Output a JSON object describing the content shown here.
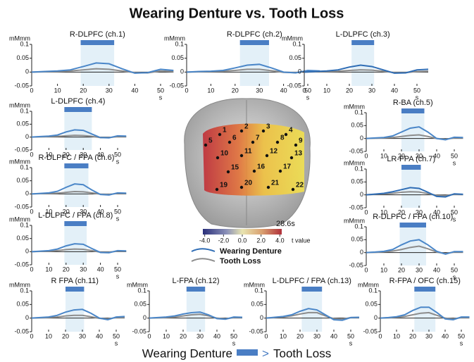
{
  "title": "Wearing  Denture vs. Tooth Loss",
  "chart_data": [
    {
      "type": "line",
      "title": "R-DLPFC (ch.1)",
      "y_label": "mMmm",
      "x_label": "s",
      "x": [
        0,
        5,
        10,
        15,
        20,
        25,
        30,
        35,
        40,
        45,
        50,
        55
      ],
      "xlim": [
        0,
        55
      ],
      "ylim": [
        -0.05,
        0.1
      ],
      "xticks": [
        0,
        10,
        20,
        30,
        40,
        50
      ],
      "yticks": [
        -0.05,
        0,
        0.05,
        0.1
      ],
      "significant": [
        19,
        32
      ],
      "series": [
        {
          "color": "#4a86c8",
          "values": [
            0,
            0.002,
            0.004,
            0.008,
            0.02,
            0.033,
            0.03,
            0.012,
            -0.004,
            -0.002,
            0.01,
            0.006
          ]
        },
        {
          "color": "#8c8c8c",
          "values": [
            0,
            0.001,
            0.002,
            0.004,
            0.008,
            0.012,
            0.01,
            0.004,
            -0.002,
            -0.003,
            0.004,
            0.002
          ]
        }
      ]
    },
    {
      "type": "line",
      "title": "R-DLPFC (ch.2)",
      "y_label": "mMmm",
      "x_label": "s",
      "x": [
        0,
        5,
        10,
        15,
        20,
        25,
        30,
        35,
        40,
        45,
        50,
        55
      ],
      "xlim": [
        0,
        55
      ],
      "ylim": [
        -0.05,
        0.1
      ],
      "xticks": [
        0,
        10,
        20,
        30,
        40,
        50
      ],
      "yticks": [
        -0.05,
        0,
        0.05,
        0.1
      ],
      "significant": [
        22,
        34
      ],
      "series": [
        {
          "color": "#4a86c8",
          "values": [
            0,
            0.002,
            0.003,
            0.006,
            0.015,
            0.025,
            0.028,
            0.015,
            0,
            -0.003,
            0.006,
            0.004
          ]
        },
        {
          "color": "#8c8c8c",
          "values": [
            0,
            0.001,
            0.002,
            0.003,
            0.006,
            0.01,
            0.01,
            0.005,
            -0.001,
            -0.002,
            0.003,
            0.002
          ]
        }
      ]
    },
    {
      "type": "line",
      "title": "L-DLPFC (ch.3)",
      "y_label": "mMmm",
      "x_label": "s",
      "x": [
        0,
        5,
        10,
        15,
        20,
        25,
        30,
        35,
        40,
        45,
        50,
        55
      ],
      "xlim": [
        0,
        55
      ],
      "ylim": [
        -0.05,
        0.1
      ],
      "xticks": [
        0,
        10,
        20,
        30,
        40,
        50
      ],
      "yticks": [
        -0.05,
        0,
        0.05,
        0.1
      ],
      "significant": [
        21,
        31
      ],
      "series": [
        {
          "color": "#2f6db5",
          "values": [
            0,
            0.002,
            0.004,
            0.008,
            0.018,
            0.025,
            0.02,
            0.008,
            -0.004,
            -0.003,
            0.008,
            0.01
          ]
        },
        {
          "color": "#8c8c8c",
          "values": [
            0,
            0.001,
            0.002,
            0.003,
            0.006,
            0.008,
            0.007,
            0.003,
            -0.002,
            -0.002,
            0.002,
            0.003
          ]
        }
      ]
    },
    {
      "type": "line",
      "title": "L-DLPFC (ch.4)",
      "y_label": "mMmm",
      "x_label": "s",
      "x": [
        0,
        5,
        10,
        15,
        20,
        25,
        30,
        35,
        40,
        45,
        50,
        55
      ],
      "xlim": [
        0,
        55
      ],
      "ylim": [
        -0.05,
        0.1
      ],
      "xticks": [
        0,
        10,
        20,
        30,
        40,
        50
      ],
      "yticks": [
        -0.05,
        0,
        0.05,
        0.1
      ],
      "significant": [
        19,
        35
      ],
      "series": [
        {
          "color": "#4a86c8",
          "values": [
            0,
            0.002,
            0.004,
            0.008,
            0.02,
            0.028,
            0.026,
            0.012,
            -0.002,
            -0.003,
            0.005,
            0.004
          ]
        },
        {
          "color": "#8c8c8c",
          "values": [
            0,
            0.001,
            0.002,
            0.003,
            0.005,
            0.007,
            0.006,
            0.003,
            -0.002,
            -0.002,
            0.002,
            0.002
          ]
        }
      ]
    },
    {
      "type": "line",
      "title": "R-BA (ch.5)",
      "y_label": "mMmm",
      "x_label": "s",
      "x": [
        0,
        5,
        10,
        15,
        20,
        25,
        30,
        35,
        40,
        45,
        50,
        55
      ],
      "xlim": [
        0,
        55
      ],
      "ylim": [
        -0.05,
        0.1
      ],
      "xticks": [
        0,
        10,
        20,
        30,
        40,
        50
      ],
      "yticks": [
        -0.05,
        0,
        0.05,
        0.1
      ],
      "significant": [
        20,
        33
      ],
      "series": [
        {
          "color": "#4a86c8",
          "values": [
            0,
            0.002,
            0.004,
            0.01,
            0.025,
            0.04,
            0.045,
            0.025,
            0,
            -0.005,
            0.005,
            0.004
          ]
        },
        {
          "color": "#8c8c8c",
          "values": [
            0,
            0.001,
            0.002,
            0.004,
            0.008,
            0.012,
            0.014,
            0.008,
            0,
            -0.003,
            0.002,
            0.002
          ]
        }
      ]
    },
    {
      "type": "line",
      "title": "R-DLPFC / FPA (ch.6)",
      "y_label": "mMmm",
      "x_label": "s",
      "x": [
        0,
        5,
        10,
        15,
        20,
        25,
        30,
        35,
        40,
        45,
        50,
        55
      ],
      "xlim": [
        0,
        55
      ],
      "ylim": [
        -0.05,
        0.1
      ],
      "xticks": [
        0,
        10,
        20,
        30,
        40,
        50
      ],
      "yticks": [
        -0.05,
        0,
        0.05,
        0.1
      ],
      "significant": [
        19,
        33
      ],
      "series": [
        {
          "color": "#4a86c8",
          "values": [
            0,
            0.002,
            0.004,
            0.01,
            0.025,
            0.038,
            0.035,
            0.015,
            -0.002,
            -0.004,
            0.004,
            0.003
          ]
        },
        {
          "color": "#8c8c8c",
          "values": [
            0,
            0.001,
            0.002,
            0.003,
            0.006,
            0.009,
            0.008,
            0.004,
            -0.001,
            -0.002,
            0.002,
            0.002
          ]
        }
      ]
    },
    {
      "type": "line",
      "title": "LR-FPA (ch.7)",
      "y_label": "mMmm",
      "x_label": "s",
      "x": [
        0,
        5,
        10,
        15,
        20,
        25,
        30,
        35,
        40,
        45,
        50,
        55
      ],
      "xlim": [
        0,
        55
      ],
      "ylim": [
        -0.05,
        0.1
      ],
      "xticks": [
        0,
        10,
        20,
        30,
        40,
        50
      ],
      "yticks": [
        -0.05,
        0,
        0.05,
        0.1
      ],
      "significant": [
        20,
        31
      ],
      "series": [
        {
          "color": "#2f6db5",
          "values": [
            0,
            0.003,
            0.006,
            0.012,
            0.02,
            0.028,
            0.025,
            0.01,
            -0.006,
            -0.008,
            0.004,
            0.002
          ]
        },
        {
          "color": "#8c8c8c",
          "values": [
            0,
            0.002,
            0.004,
            0.006,
            0.01,
            0.012,
            0.011,
            0.005,
            -0.002,
            -0.003,
            0.002,
            0.001
          ]
        }
      ]
    },
    {
      "type": "line",
      "title": "L-DLPFC / FPA (ch.8)",
      "y_label": "mMmm",
      "x_label": "s",
      "x": [
        0,
        5,
        10,
        15,
        20,
        25,
        30,
        35,
        40,
        45,
        50,
        55
      ],
      "xlim": [
        0,
        55
      ],
      "ylim": [
        -0.05,
        0.1
      ],
      "xticks": [
        0,
        10,
        20,
        30,
        40,
        50
      ],
      "yticks": [
        -0.05,
        0,
        0.05,
        0.1
      ],
      "significant": [
        19,
        32
      ],
      "series": [
        {
          "color": "#4a86c8",
          "values": [
            0,
            0.002,
            0.004,
            0.01,
            0.022,
            0.03,
            0.028,
            0.012,
            -0.003,
            -0.004,
            0.004,
            0.003
          ]
        },
        {
          "color": "#8c8c8c",
          "values": [
            0,
            0.001,
            0.002,
            0.004,
            0.008,
            0.01,
            0.009,
            0.004,
            -0.002,
            -0.002,
            0.002,
            0.002
          ]
        }
      ]
    },
    {
      "type": "line",
      "title": "R-DLPFC / FPA (ch.10)",
      "y_label": "mMmm",
      "x_label": "s",
      "x": [
        0,
        5,
        10,
        15,
        20,
        25,
        30,
        35,
        40,
        45,
        50,
        55
      ],
      "xlim": [
        0,
        55
      ],
      "ylim": [
        -0.05,
        0.1
      ],
      "xticks": [
        0,
        10,
        20,
        30,
        40,
        50
      ],
      "yticks": [
        -0.05,
        0,
        0.05,
        0.1
      ],
      "significant": [
        19,
        34
      ],
      "series": [
        {
          "color": "#4a86c8",
          "values": [
            0,
            0.002,
            0.005,
            0.012,
            0.03,
            0.045,
            0.05,
            0.03,
            0.005,
            -0.006,
            0.004,
            0.004
          ]
        },
        {
          "color": "#8c8c8c",
          "values": [
            0,
            0.001,
            0.003,
            0.006,
            0.012,
            0.02,
            0.025,
            0.015,
            0.002,
            -0.004,
            0.002,
            0.002
          ]
        }
      ]
    },
    {
      "type": "line",
      "title": "R FPA (ch.11)",
      "y_label": "mMmm",
      "x_label": "s",
      "x": [
        0,
        5,
        10,
        15,
        20,
        25,
        30,
        35,
        40,
        45,
        50,
        55
      ],
      "xlim": [
        0,
        55
      ],
      "ylim": [
        -0.05,
        0.1
      ],
      "xticks": [
        0,
        10,
        20,
        30,
        40,
        50
      ],
      "yticks": [
        -0.05,
        0,
        0.05,
        0.1
      ],
      "significant": [
        20,
        31
      ],
      "series": [
        {
          "color": "#4a86c8",
          "values": [
            0,
            0.002,
            0.004,
            0.01,
            0.022,
            0.03,
            0.032,
            0.018,
            0,
            -0.006,
            0.004,
            0.006
          ]
        },
        {
          "color": "#8c8c8c",
          "values": [
            0,
            0.001,
            0.002,
            0.004,
            0.008,
            0.01,
            0.01,
            0.005,
            -0.001,
            -0.003,
            0.002,
            0.002
          ]
        }
      ]
    },
    {
      "type": "line",
      "title": "L-FPA (ch.12)",
      "y_label": "mMmm",
      "x_label": "s",
      "x": [
        0,
        5,
        10,
        15,
        20,
        25,
        30,
        35,
        40,
        45,
        50,
        55
      ],
      "xlim": [
        0,
        55
      ],
      "ylim": [
        -0.05,
        0.1
      ],
      "xticks": [
        0,
        10,
        20,
        30,
        40,
        50
      ],
      "yticks": [
        -0.05,
        0,
        0.05,
        0.1
      ],
      "significant": [
        22,
        33
      ],
      "series": [
        {
          "color": "#4a86c8",
          "values": [
            0,
            0.002,
            0.004,
            0.008,
            0.015,
            0.02,
            0.022,
            0.012,
            -0.002,
            -0.004,
            0.004,
            0.003
          ]
        },
        {
          "color": "#8c8c8c",
          "values": [
            0,
            0.001,
            0.002,
            0.004,
            0.008,
            0.012,
            0.014,
            0.008,
            0,
            -0.003,
            0.002,
            0.002
          ]
        }
      ]
    },
    {
      "type": "line",
      "title": "L-DLPFC / FPA (ch.13)",
      "y_label": "mMmm",
      "x_label": "s",
      "x": [
        0,
        5,
        10,
        15,
        20,
        25,
        30,
        35,
        40,
        45,
        50,
        55
      ],
      "xlim": [
        0,
        55
      ],
      "ylim": [
        -0.05,
        0.1
      ],
      "xticks": [
        0,
        10,
        20,
        30,
        40,
        50
      ],
      "yticks": [
        -0.05,
        0,
        0.05,
        0.1
      ],
      "significant": [
        21,
        33
      ],
      "series": [
        {
          "color": "#4a86c8",
          "values": [
            0,
            0.003,
            0.006,
            0.012,
            0.025,
            0.035,
            0.03,
            0.012,
            -0.006,
            -0.008,
            0.002,
            0.003
          ]
        },
        {
          "color": "#8c8c8c",
          "values": [
            0,
            0.002,
            0.004,
            0.008,
            0.015,
            0.02,
            0.02,
            0.008,
            -0.002,
            -0.004,
            0.002,
            0.002
          ]
        }
      ]
    },
    {
      "type": "line",
      "title": "R-FPA / OFC (ch.15)",
      "y_label": "mMmm",
      "x_label": "s",
      "x": [
        0,
        5,
        10,
        15,
        20,
        25,
        30,
        35,
        40,
        45,
        50,
        55
      ],
      "xlim": [
        0,
        55
      ],
      "ylim": [
        -0.05,
        0.1
      ],
      "xticks": [
        0,
        10,
        20,
        30,
        40,
        50
      ],
      "yticks": [
        -0.05,
        0,
        0.05,
        0.1
      ],
      "significant": [
        21,
        34
      ],
      "series": [
        {
          "color": "#4a86c8",
          "values": [
            0,
            0.002,
            0.005,
            0.012,
            0.028,
            0.04,
            0.04,
            0.02,
            -0.003,
            -0.006,
            0.004,
            0.004
          ]
        },
        {
          "color": "#8c8c8c",
          "values": [
            0,
            0.001,
            0.003,
            0.006,
            0.012,
            0.018,
            0.02,
            0.01,
            0,
            -0.003,
            0.002,
            0.002
          ]
        }
      ]
    }
  ],
  "brain": {
    "channels": [
      "1",
      "2",
      "3",
      "4",
      "5",
      "6",
      "7",
      "8",
      "9",
      "10",
      "11",
      "12",
      "13",
      "15",
      "16",
      "17",
      "19",
      "20",
      "21",
      "22"
    ],
    "time": "28.6s",
    "colorbar_label": "t value",
    "colorbar_ticks": [
      {
        "value": -4,
        "label": "-4.0"
      },
      {
        "value": -2,
        "label": "-2.0"
      },
      {
        "value": 0,
        "label": "0.0"
      },
      {
        "value": 2,
        "label": "2.0"
      },
      {
        "value": 4,
        "label": "4.0"
      }
    ],
    "colorbar_lim": [
      -4.2,
      4.2
    ]
  },
  "legend": [
    {
      "name": "Wearing Denture",
      "color": "#2f6db5"
    },
    {
      "name": "Tooth Loss",
      "color": "#8c8c8c"
    }
  ],
  "footer": {
    "left": "Wearing Denture",
    "symbol": ">",
    "right": "Tooth Loss",
    "color": "#4a7ec4"
  }
}
